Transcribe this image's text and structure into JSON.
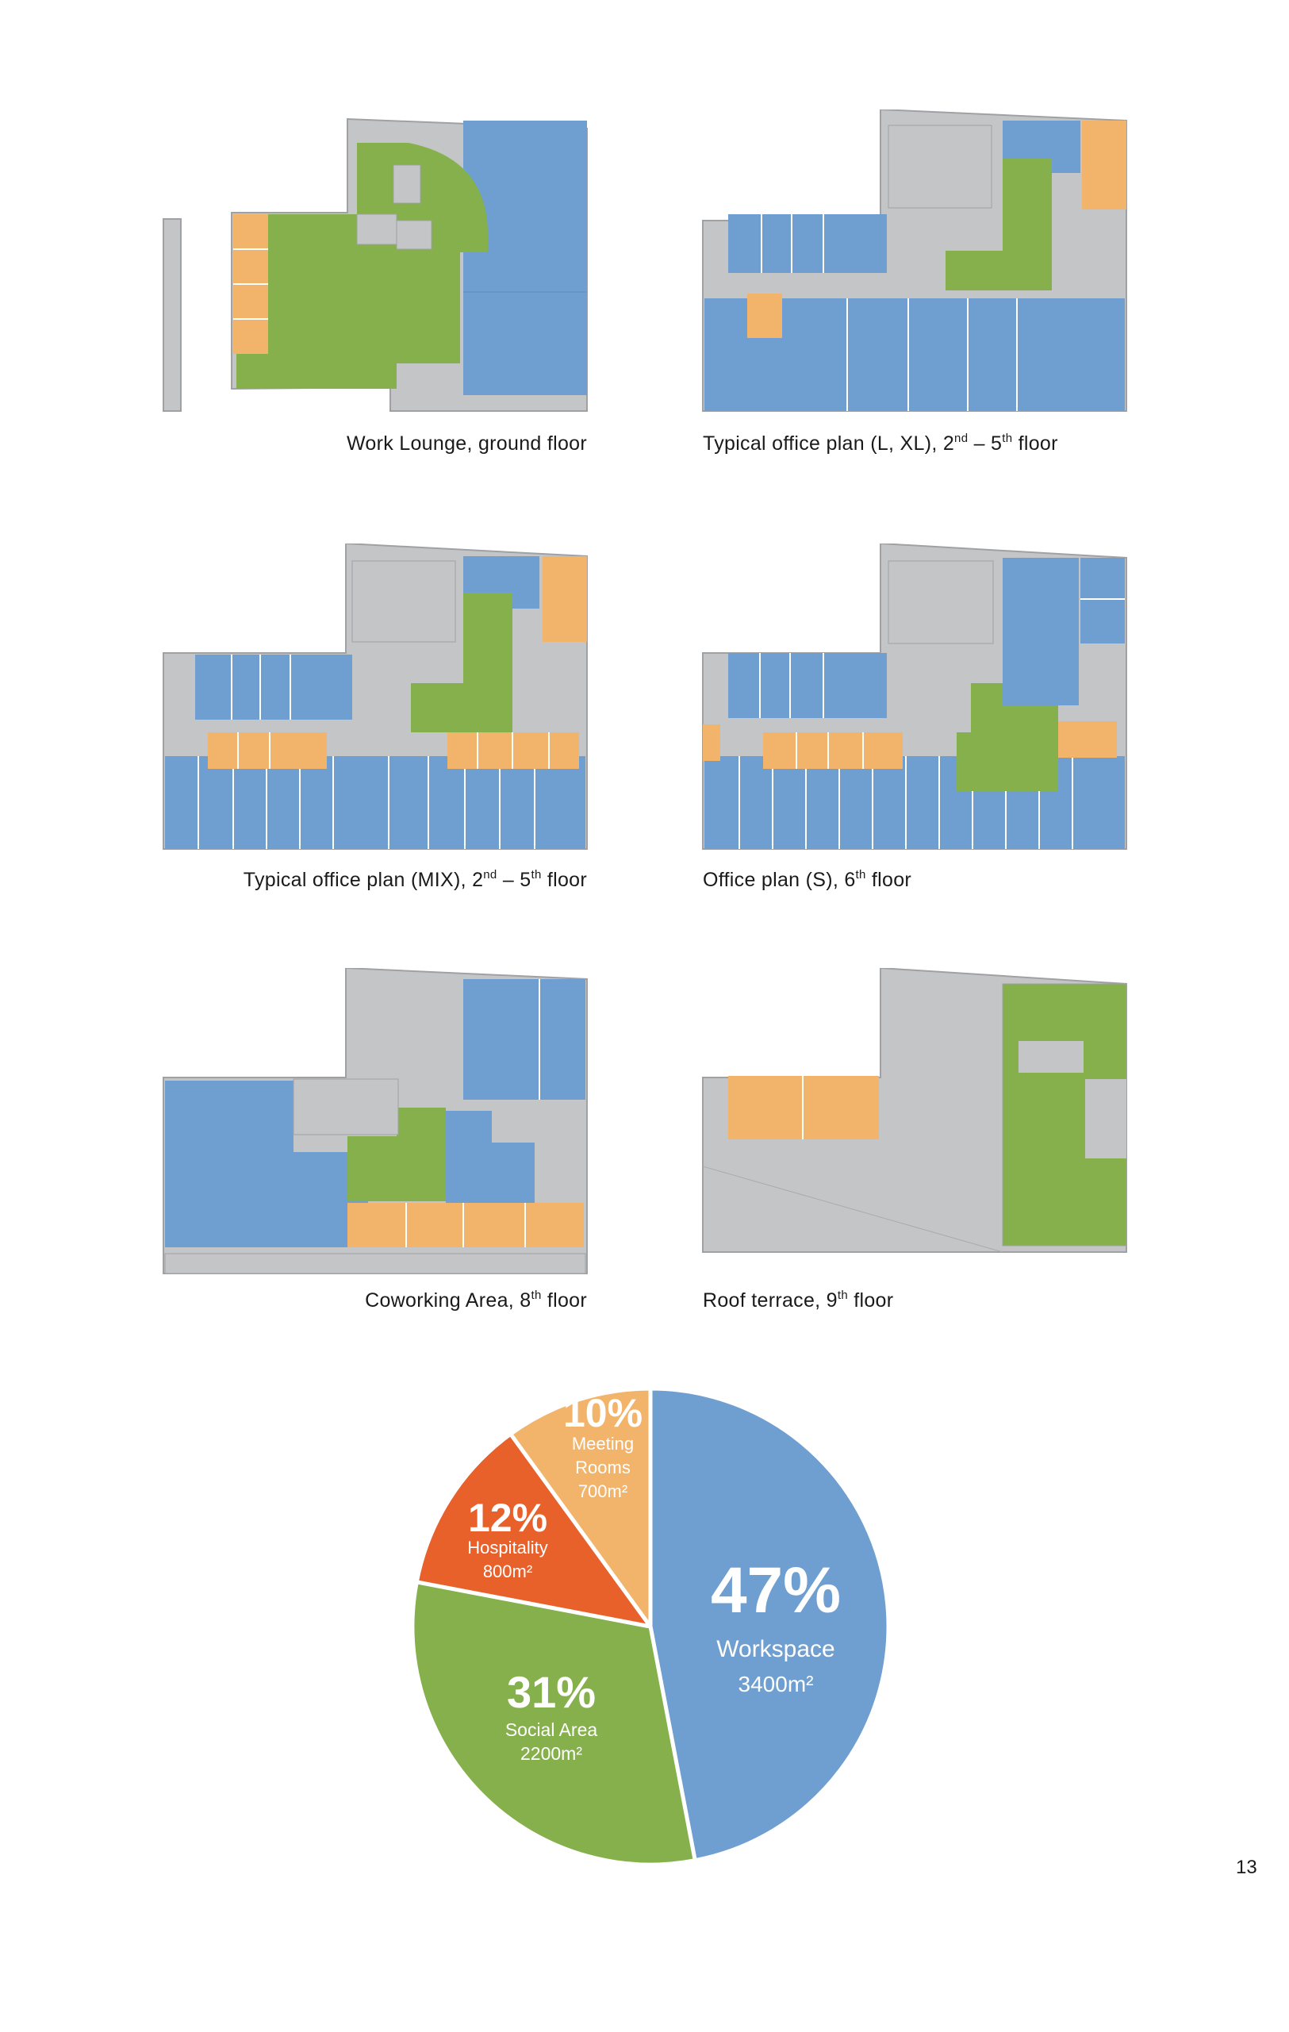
{
  "colors": {
    "workspace": "#6f9fd0",
    "social": "#86b04c",
    "meeting": "#f2b46a",
    "hospitality": "#e8602a",
    "building": "#c4c5c7",
    "outline": "#9fa1a4"
  },
  "floor_plans": [
    {
      "caption_main": "Work Lounge, ground floor",
      "caption_parts": [
        "Work Lounge, ground floor"
      ],
      "sups": []
    },
    {
      "caption_main": "Typical office plan (L, XL), 2nd – 5th floor",
      "caption_parts": [
        "Typical office plan (L, XL), 2",
        " – 5",
        " floor"
      ],
      "sups": [
        "nd",
        "th"
      ]
    },
    {
      "caption_main": "Typical office plan (MIX), 2nd – 5th floor",
      "caption_parts": [
        "Typical office plan (MIX), 2",
        " – 5",
        " floor"
      ],
      "sups": [
        "nd",
        "th"
      ]
    },
    {
      "caption_main": "Office plan (S), 6th floor",
      "caption_parts": [
        "Office plan (S), 6",
        " floor"
      ],
      "sups": [
        "th"
      ]
    },
    {
      "caption_main": "Coworking Area, 8th floor",
      "caption_parts": [
        "Coworking Area, 8",
        " floor"
      ],
      "sups": [
        "th"
      ]
    },
    {
      "caption_main": "Roof terrace, 9th floor",
      "caption_parts": [
        "Roof terrace, 9",
        " floor"
      ],
      "sups": [
        "th"
      ]
    }
  ],
  "chart_data": {
    "type": "pie",
    "slices": [
      {
        "label": "Workspace",
        "percent": 47,
        "percent_label": "47%",
        "area_label": "3400m²",
        "color": "#6f9fd0"
      },
      {
        "label": "Social Area",
        "percent": 31,
        "percent_label": "31%",
        "area_label": "2200m²",
        "color": "#86b04c"
      },
      {
        "label": "Hospitality",
        "percent": 12,
        "percent_label": "12%",
        "area_label": "800m²",
        "color": "#e8602a"
      },
      {
        "label": "Meeting Rooms",
        "label_lines": [
          "Meeting",
          "Rooms"
        ],
        "percent": 10,
        "percent_label": "10%",
        "area_label": "700m²",
        "color": "#f2b46a"
      }
    ]
  },
  "page_number": "13"
}
